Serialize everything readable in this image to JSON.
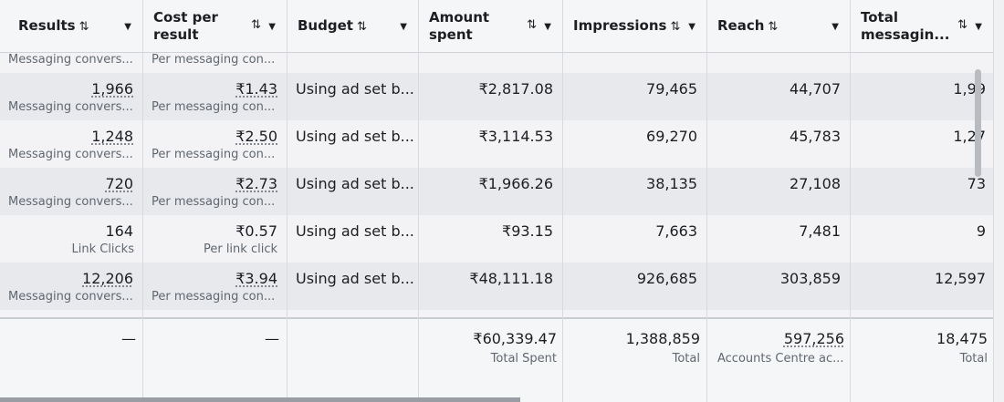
{
  "columns": [
    {
      "label": "Results",
      "two_line": false
    },
    {
      "label": "Cost per result",
      "two_line": true
    },
    {
      "label": "Budget",
      "two_line": false
    },
    {
      "label": "Amount spent",
      "two_line": true
    },
    {
      "label": "Impressions",
      "two_line": false
    },
    {
      "label": "Reach",
      "two_line": false
    },
    {
      "label": "Total messagin...",
      "two_line": true
    }
  ],
  "sort_icon": "⇅",
  "dropdown_icon": "▼",
  "partial_row": {
    "results_sub": "Messaging convers...",
    "cost_sub": "Per messaging con..."
  },
  "rows": [
    {
      "results": "1,966",
      "results_sub": "Messaging convers...",
      "cost": "₹1.43",
      "cost_sub": "Per messaging con...",
      "budget": "Using ad set b...",
      "amount": "₹2,817.08",
      "impressions": "79,465",
      "reach": "44,707",
      "total": "1,99",
      "dotted": true,
      "shade": "#e8e9ec"
    },
    {
      "results": "1,248",
      "results_sub": "Messaging convers...",
      "cost": "₹2.50",
      "cost_sub": "Per messaging con...",
      "budget": "Using ad set b...",
      "amount": "₹3,114.53",
      "impressions": "69,270",
      "reach": "45,783",
      "total": "1,27",
      "dotted": true,
      "shade": "#f3f3f5"
    },
    {
      "results": "720",
      "results_sub": "Messaging convers...",
      "cost": "₹2.73",
      "cost_sub": "Per messaging con...",
      "budget": "Using ad set b...",
      "amount": "₹1,966.26",
      "impressions": "38,135",
      "reach": "27,108",
      "total": "73",
      "dotted": true,
      "shade": "#e8e9ec"
    },
    {
      "results": "164",
      "results_sub": "Link Clicks",
      "cost": "₹0.57",
      "cost_sub": "Per link click",
      "budget": "Using ad set b...",
      "amount": "₹93.15",
      "impressions": "7,663",
      "reach": "7,481",
      "total": "9",
      "dotted": false,
      "shade": "#f3f3f5"
    },
    {
      "results": "12,206",
      "results_sub": "Messaging convers...",
      "cost": "₹3.94",
      "cost_sub": "Per messaging con...",
      "budget": "Using ad set b...",
      "amount": "₹48,111.18",
      "impressions": "926,685",
      "reach": "303,859",
      "total": "12,597",
      "dotted": true,
      "shade": "#e8e9ec"
    }
  ],
  "totals": {
    "results": "—",
    "cost": "—",
    "amount": "₹60,339.47",
    "amount_sub": "Total Spent",
    "impressions": "1,388,859",
    "impressions_sub": "Total",
    "reach": "597,256",
    "reach_sub": "Accounts Centre ac...",
    "total": "18,475",
    "total_sub": "Total"
  },
  "colors": {
    "row_shade": "#e8e9ec",
    "row_plain": "#f3f3f5",
    "divider": "#d8dadf"
  }
}
